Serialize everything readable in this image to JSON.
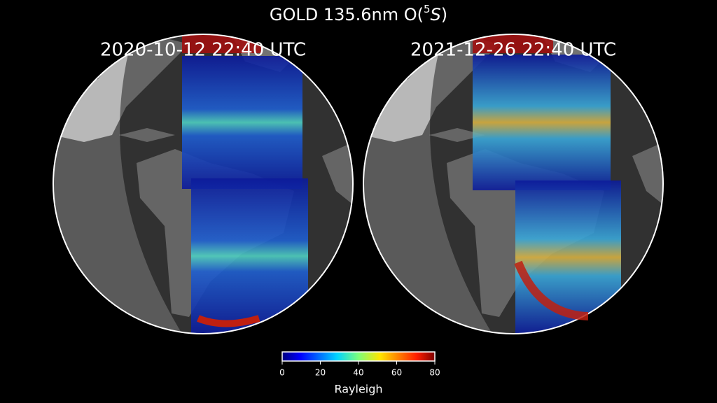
{
  "title": {
    "parts": [
      "GOLD 135.6nm O(",
      "5",
      "S",
      ")"
    ]
  },
  "panels": [
    {
      "label": "2020-10-12  22:40 UTC"
    },
    {
      "label": "2021-12-26  22:40 UTC"
    }
  ],
  "colorbar": {
    "lim": [
      0,
      80
    ],
    "ticks": [
      0,
      20,
      40,
      60,
      80
    ],
    "label": "Rayleigh"
  }
}
